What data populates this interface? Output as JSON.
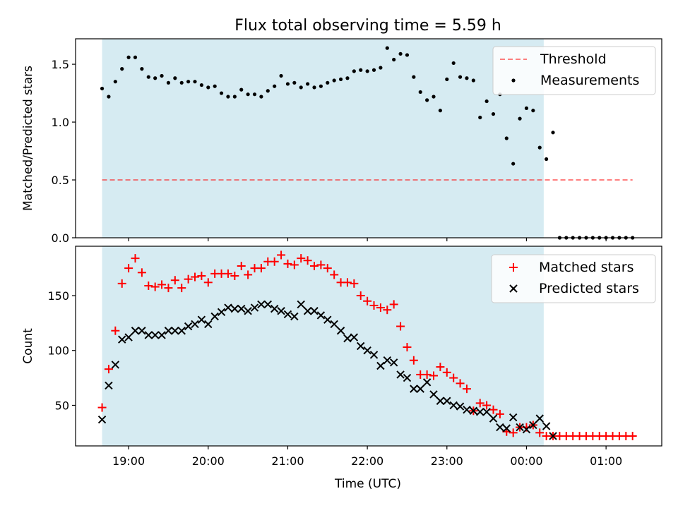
{
  "title": "Flux total observing time = 5.59 h",
  "xlabel": "Time (UTC)",
  "colors": {
    "shade": "#add8e6",
    "threshold": "#ff0000",
    "matched": "#ff0000",
    "predicted": "#000000",
    "measurement": "#000000"
  },
  "chart_data": [
    {
      "type": "scatter",
      "ylabel": "Matched/Predicted stars",
      "ylim": [
        0,
        1.72
      ],
      "xlim": [
        "18:20",
        "01:42"
      ],
      "x_ticks": [
        "19:00",
        "20:00",
        "21:00",
        "22:00",
        "23:00",
        "00:00",
        "01:00"
      ],
      "y_ticks": [
        "0.0",
        "0.5",
        "1.0",
        "1.5"
      ],
      "legend_position": "top-right",
      "shaded_interval": [
        "18:40",
        "00:13"
      ],
      "series": [
        {
          "name": "Threshold",
          "style": "dashed-line",
          "x": [
            "18:40",
            "01:20"
          ],
          "y": [
            0.5,
            0.5
          ]
        },
        {
          "name": "Measurements",
          "style": "dot",
          "x": [
            "18:40",
            "18:45",
            "18:50",
            "18:55",
            "19:00",
            "19:05",
            "19:10",
            "19:15",
            "19:20",
            "19:25",
            "19:30",
            "19:35",
            "19:40",
            "19:45",
            "19:50",
            "19:55",
            "20:00",
            "20:05",
            "20:10",
            "20:15",
            "20:20",
            "20:25",
            "20:30",
            "20:35",
            "20:40",
            "20:45",
            "20:50",
            "20:55",
            "21:00",
            "21:05",
            "21:10",
            "21:15",
            "21:20",
            "21:25",
            "21:30",
            "21:35",
            "21:40",
            "21:45",
            "21:50",
            "21:55",
            "22:00",
            "22:05",
            "22:10",
            "22:15",
            "22:20",
            "22:25",
            "22:30",
            "22:35",
            "22:40",
            "22:45",
            "22:50",
            "22:55",
            "23:00",
            "23:05",
            "23:10",
            "23:15",
            "23:20",
            "23:25",
            "23:30",
            "23:35",
            "23:40",
            "23:45",
            "23:50",
            "23:55",
            "00:00",
            "00:05",
            "00:10",
            "00:15",
            "00:20",
            "00:25",
            "00:30",
            "00:35",
            "00:40",
            "00:45",
            "00:50",
            "00:55",
            "01:00",
            "01:05",
            "01:10",
            "01:15",
            "01:20"
          ],
          "y": [
            1.29,
            1.22,
            1.35,
            1.46,
            1.56,
            1.56,
            1.46,
            1.39,
            1.38,
            1.4,
            1.34,
            1.38,
            1.34,
            1.35,
            1.35,
            1.32,
            1.3,
            1.31,
            1.25,
            1.22,
            1.22,
            1.28,
            1.24,
            1.24,
            1.22,
            1.27,
            1.31,
            1.4,
            1.33,
            1.34,
            1.3,
            1.33,
            1.3,
            1.31,
            1.34,
            1.36,
            1.37,
            1.38,
            1.44,
            1.45,
            1.44,
            1.45,
            1.47,
            1.64,
            1.54,
            1.59,
            1.58,
            1.39,
            1.26,
            1.19,
            1.22,
            1.1,
            1.37,
            1.51,
            1.39,
            1.38,
            1.36,
            1.04,
            1.18,
            1.07,
            1.24,
            0.86,
            0.64,
            1.03,
            1.12,
            1.1,
            0.78,
            0.68,
            0.91,
            0,
            0,
            0,
            0,
            0,
            0,
            0,
            0,
            0,
            0,
            0,
            0
          ]
        }
      ]
    },
    {
      "type": "scatter",
      "ylabel": "Count",
      "ylim": [
        13,
        195
      ],
      "xlim": [
        "18:20",
        "01:42"
      ],
      "x_ticks": [
        "19:00",
        "20:00",
        "21:00",
        "22:00",
        "23:00",
        "00:00",
        "01:00"
      ],
      "y_ticks": [
        "50",
        "100",
        "150"
      ],
      "legend_position": "top-right",
      "shaded_interval": [
        "18:40",
        "00:13"
      ],
      "series": [
        {
          "name": "Matched stars",
          "style": "plus",
          "x": [
            "18:40",
            "18:45",
            "18:50",
            "18:55",
            "19:00",
            "19:05",
            "19:10",
            "19:15",
            "19:20",
            "19:25",
            "19:30",
            "19:35",
            "19:40",
            "19:45",
            "19:50",
            "19:55",
            "20:00",
            "20:05",
            "20:10",
            "20:15",
            "20:20",
            "20:25",
            "20:30",
            "20:35",
            "20:40",
            "20:45",
            "20:50",
            "20:55",
            "21:00",
            "21:05",
            "21:10",
            "21:15",
            "21:20",
            "21:25",
            "21:30",
            "21:35",
            "21:40",
            "21:45",
            "21:50",
            "21:55",
            "22:00",
            "22:05",
            "22:10",
            "22:15",
            "22:20",
            "22:25",
            "22:30",
            "22:35",
            "22:40",
            "22:45",
            "22:50",
            "22:55",
            "23:00",
            "23:05",
            "23:10",
            "23:15",
            "23:20",
            "23:25",
            "23:30",
            "23:35",
            "23:40",
            "23:45",
            "23:50",
            "23:55",
            "00:00",
            "00:05",
            "00:10",
            "00:15",
            "00:20",
            "00:25",
            "00:30",
            "00:35",
            "00:40",
            "00:45",
            "00:50",
            "00:55",
            "01:00",
            "01:05",
            "01:10",
            "01:15",
            "01:20"
          ],
          "y": [
            48,
            83,
            118,
            161,
            175,
            184,
            171,
            159,
            158,
            160,
            157,
            164,
            157,
            165,
            167,
            168,
            162,
            170,
            170,
            170,
            168,
            177,
            169,
            175,
            175,
            181,
            181,
            187,
            179,
            178,
            184,
            182,
            177,
            178,
            175,
            169,
            162,
            162,
            161,
            150,
            145,
            141,
            139,
            137,
            142,
            122,
            103,
            91,
            78,
            78,
            77,
            85,
            80,
            75,
            70,
            65,
            45,
            52,
            50,
            46,
            42,
            26,
            25,
            30,
            30,
            32,
            25,
            22,
            22,
            22,
            22,
            22,
            22,
            22,
            22,
            22,
            22,
            22,
            22,
            22,
            22
          ]
        },
        {
          "name": "Predicted stars",
          "style": "cross",
          "x": [
            "18:40",
            "18:45",
            "18:50",
            "18:55",
            "19:00",
            "19:05",
            "19:10",
            "19:15",
            "19:20",
            "19:25",
            "19:30",
            "19:35",
            "19:40",
            "19:45",
            "19:50",
            "19:55",
            "20:00",
            "20:05",
            "20:10",
            "20:15",
            "20:20",
            "20:25",
            "20:30",
            "20:35",
            "20:40",
            "20:45",
            "20:50",
            "20:55",
            "21:00",
            "21:05",
            "21:10",
            "21:15",
            "21:20",
            "21:25",
            "21:30",
            "21:35",
            "21:40",
            "21:45",
            "21:50",
            "21:55",
            "22:00",
            "22:05",
            "22:10",
            "22:15",
            "22:20",
            "22:25",
            "22:30",
            "22:35",
            "22:40",
            "22:45",
            "22:50",
            "22:55",
            "23:00",
            "23:05",
            "23:10",
            "23:15",
            "23:20",
            "23:25",
            "23:30",
            "23:35",
            "23:40",
            "23:45",
            "23:50",
            "23:55",
            "00:00",
            "00:05",
            "00:10",
            "00:15",
            "00:20"
          ],
          "y": [
            37,
            68,
            87,
            110,
            112,
            118,
            118,
            114,
            114,
            114,
            118,
            118,
            118,
            122,
            124,
            128,
            124,
            131,
            135,
            139,
            138,
            138,
            136,
            139,
            142,
            142,
            138,
            136,
            133,
            131,
            142,
            136,
            136,
            132,
            128,
            124,
            118,
            111,
            112,
            104,
            100,
            96,
            86,
            91,
            89,
            78,
            75,
            65,
            65,
            71,
            60,
            54,
            54,
            50,
            49,
            46,
            45,
            44,
            44,
            38,
            30,
            29,
            39,
            30,
            28,
            32,
            38,
            31,
            22
          ]
        }
      ]
    }
  ]
}
